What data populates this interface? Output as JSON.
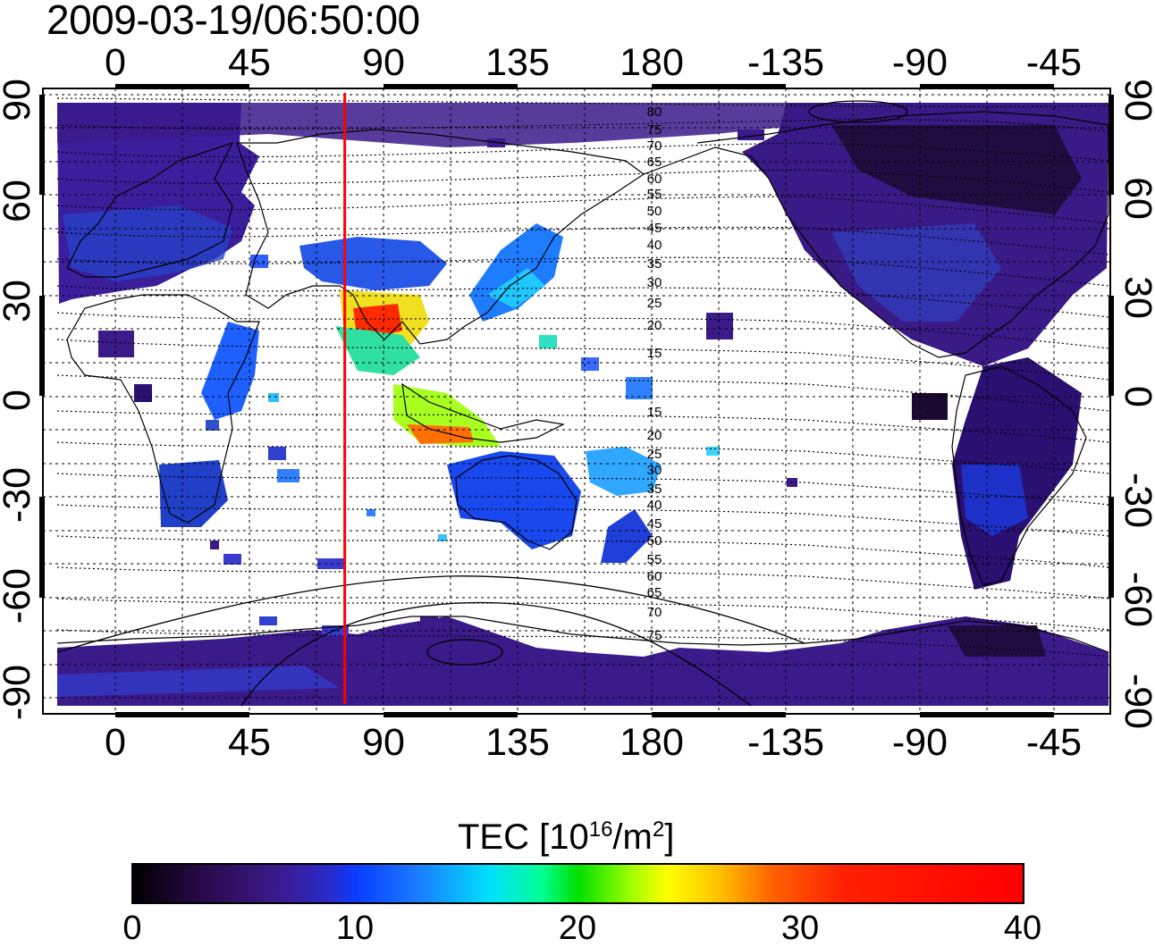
{
  "title": "2009-03-19/06:50:00",
  "map": {
    "top_lon_labels": [
      "0",
      "45",
      "90",
      "135",
      "180",
      "-135",
      "-90",
      "-45"
    ],
    "bottom_lon_labels": [
      "0",
      "45",
      "90",
      "135",
      "180",
      "-135",
      "-90",
      "-45"
    ],
    "left_lat_labels": [
      "90",
      "60",
      "30",
      "0",
      "-30",
      "-60",
      "-90"
    ],
    "right_lat_labels": [
      "90",
      "60",
      "30",
      "0",
      "-30",
      "-60",
      "-90"
    ],
    "marker_line_longitude": 77,
    "marker_line_color": "#ff0000",
    "contour_labels_north": [
      "80",
      "75",
      "70",
      "65",
      "60",
      "55",
      "50",
      "45",
      "40",
      "35",
      "30",
      "25",
      "20",
      "15"
    ],
    "contour_labels_south": [
      "15",
      "20",
      "25",
      "30",
      "35",
      "40",
      "45",
      "50",
      "55",
      "60",
      "65",
      "70",
      "75"
    ]
  },
  "colorbar": {
    "label_main": "TEC  [10",
    "label_exp1": "16",
    "label_mid": "/m",
    "label_exp2": "2",
    "label_end": "]",
    "ticks": [
      "0",
      "10",
      "20",
      "30",
      "40"
    ],
    "min": 0,
    "max": 40
  },
  "colors": {
    "ocean_background": "#ffffff",
    "low_tec": "#3b1a8a",
    "high_tec": "#ff0000"
  }
}
